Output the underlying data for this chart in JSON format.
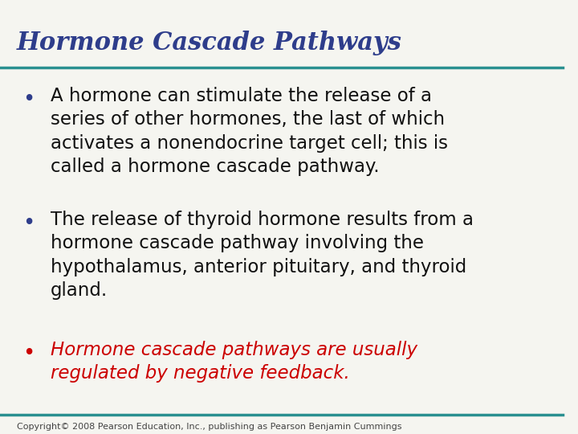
{
  "title": "Hormone Cascade Pathways",
  "title_color": "#2E3D8B",
  "title_style": "italic",
  "title_weight": "bold",
  "title_fontsize": 22,
  "separator_color": "#2A9090",
  "separator_linewidth": 2.5,
  "background_color": "#F5F5F0",
  "bullet_color": "#2E3D8B",
  "bullet1_text": "A hormone can stimulate the release of a\nseries of other hormones, the last of which\nactivates a nonendocrine target cell; this is\ncalled a hormone cascade pathway.",
  "bullet2_text": "The release of thyroid hormone results from a\nhormone cascade pathway involving the\nhypothalamus, anterior pituitary, and thyroid\ngland.",
  "bullet3_text": "Hormone cascade pathways are usually\nregulated by negative feedback.",
  "bullet3_color": "#CC0000",
  "bullet3_style": "italic",
  "body_fontsize": 16.5,
  "copyright_text": "Copyright© 2008 Pearson Education, Inc., publishing as Pearson Benjamin Cummings",
  "copyright_fontsize": 8,
  "copyright_color": "#444444"
}
